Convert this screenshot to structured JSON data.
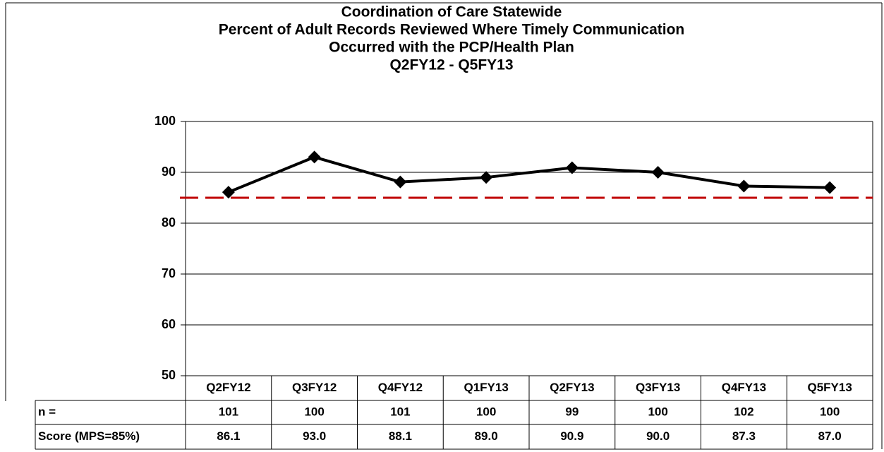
{
  "chart_data": {
    "type": "line",
    "title": [
      "Coordination of Care Statewide",
      "Percent of Adult Records Reviewed Where Timely Communication",
      "Occurred with the PCP/Health Plan",
      "Q2FY12 - Q5FY13"
    ],
    "categories": [
      "Q2FY12",
      "Q3FY12",
      "Q4FY12",
      "Q1FY13",
      "Q2FY13",
      "Q3FY13",
      "Q4FY13",
      "Q5FY13"
    ],
    "series": [
      {
        "name": "Score (MPS=85%)",
        "color": "#000000",
        "values": [
          86.1,
          93.0,
          88.1,
          89.0,
          90.9,
          90.0,
          87.3,
          87.0
        ],
        "value_labels": [
          "86.1",
          "93.0",
          "88.1",
          "89.0",
          "90.9",
          "90.0",
          "87.3",
          "87.0"
        ]
      }
    ],
    "n": {
      "label": "n =",
      "values": [
        101,
        100,
        101,
        100,
        99,
        100,
        102,
        100
      ]
    },
    "reference_line": {
      "value": 85,
      "color": "#c00000",
      "style": "dashed"
    },
    "ylim": [
      50,
      100
    ],
    "yticks": [
      50,
      60,
      70,
      80,
      90,
      100
    ],
    "grid": true
  }
}
